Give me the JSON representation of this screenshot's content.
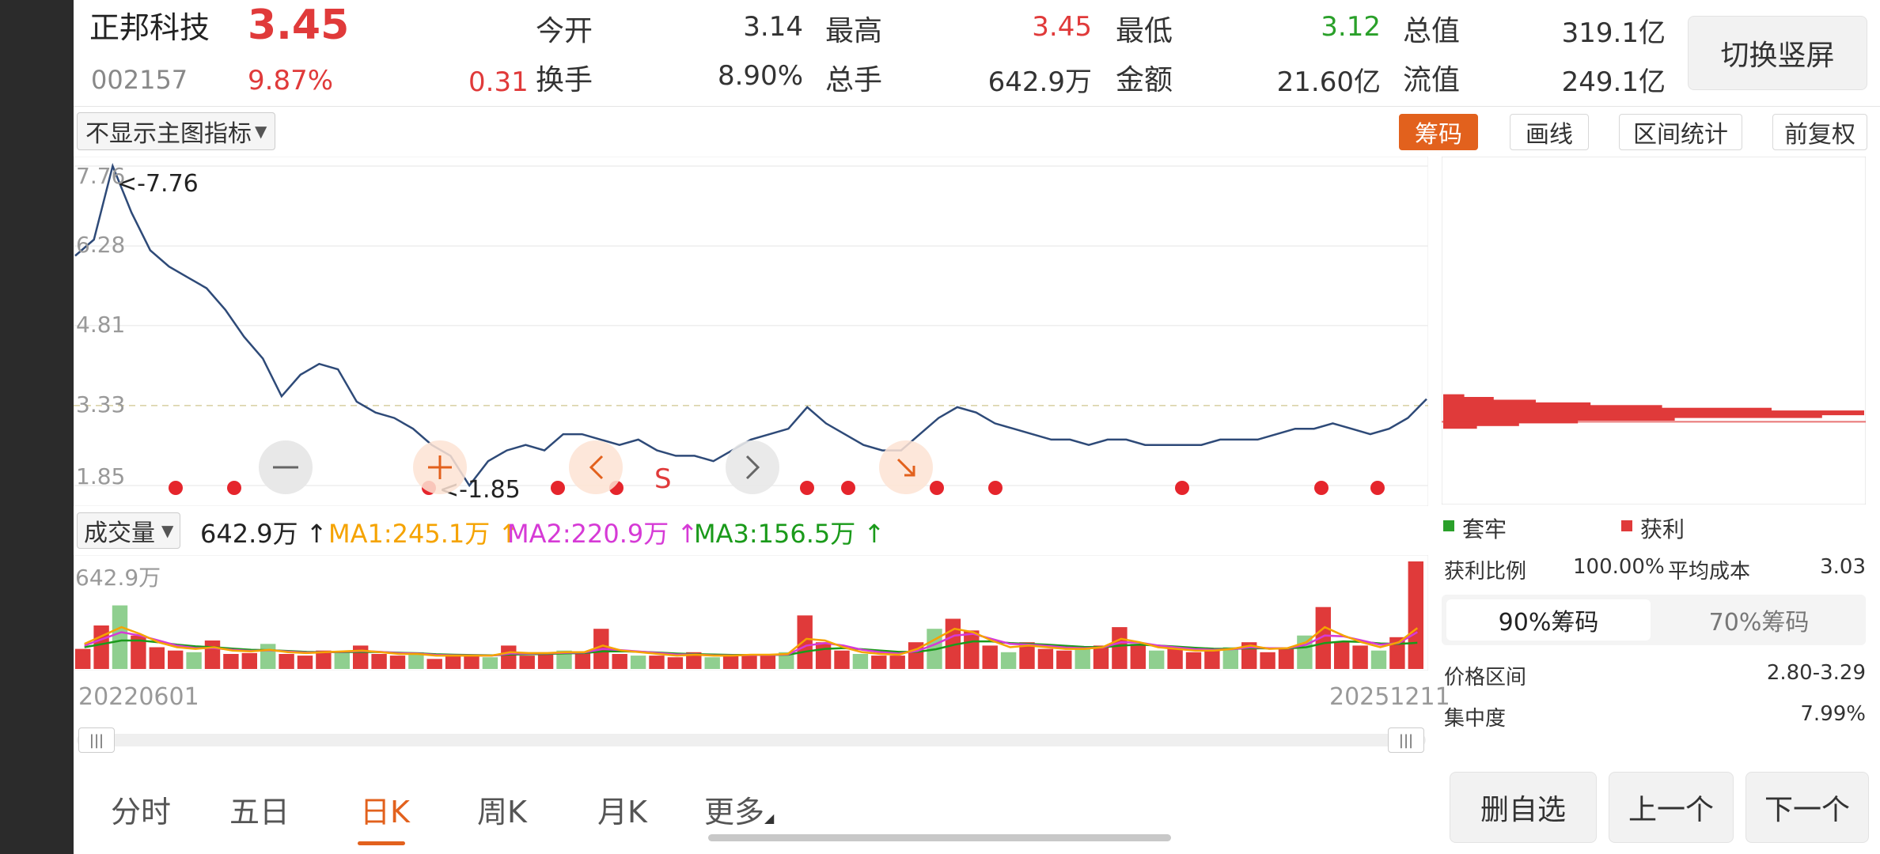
{
  "stock": {
    "name": "正邦科技",
    "code": "002157",
    "price": "3.45",
    "change_pct": "9.87%",
    "change_amt": "0.31"
  },
  "quote": {
    "open_label": "今开",
    "open_value": "3.14",
    "high_label": "最高",
    "high_value": "3.45",
    "low_label": "最低",
    "low_value": "3.12",
    "total_cap_label": "总值",
    "total_cap_value": "319.1亿",
    "turnover_label": "换手",
    "turnover_value": "8.90%",
    "volume_label": "总手",
    "volume_value": "642.9万",
    "amount_label": "金额",
    "amount_value": "21.60亿",
    "float_cap_label": "流值",
    "float_cap_value": "249.1亿"
  },
  "switch_button": "切换竖屏",
  "indicator_select": "不显示主图指标",
  "toolbar": {
    "chips": "筹码",
    "draw": "画线",
    "range_stats": "区间统计",
    "adjust": "前复权"
  },
  "price_axis": [
    "7.76",
    "6.28",
    "4.81",
    "3.33",
    "1.85"
  ],
  "annotations": {
    "high": "<-7.76",
    "low": "<-1.85",
    "s_marker": "S"
  },
  "volume_bar": {
    "select": "成交量",
    "value": "642.9万",
    "ma1": "MA1:245.1万",
    "ma2": "MA2:220.9万",
    "ma3": "MA3:156.5万",
    "axis_max": "642.9万"
  },
  "dates": {
    "start": "20220601",
    "end": "20251211"
  },
  "period_tabs": [
    "分时",
    "五日",
    "日K",
    "周K",
    "月K",
    "更多"
  ],
  "active_tab": 2,
  "chip_panel": {
    "legend_trapped": "套牢",
    "legend_profit": "获利",
    "profit_ratio_label": "获利比例",
    "profit_ratio_value": "100.00%",
    "avg_cost_label": "平均成本",
    "avg_cost_value": "3.03",
    "tab_90": "90%筹码",
    "tab_70": "70%筹码",
    "price_range_label": "价格区间",
    "price_range_value": "2.80-3.29",
    "concentration_label": "集中度",
    "concentration_value": "7.99%"
  },
  "bottom_buttons": {
    "remove": "删自选",
    "prev": "上一个",
    "next": "下一个"
  },
  "colors": {
    "up": "#e03a3a",
    "down": "#2aa02a",
    "accent": "#e2611d",
    "price_line": "#2e4a78",
    "ma1": "#f5a300",
    "ma2": "#d63ad6",
    "ma3": "#1a9a1a"
  },
  "chart_data": [
    {
      "type": "line",
      "title": "",
      "xlabel": "",
      "ylabel": "",
      "x_range": [
        "20220601",
        "20251211"
      ],
      "ylim": [
        1.85,
        7.76
      ],
      "y_ticks": [
        7.76,
        6.28,
        4.81,
        3.33,
        1.85
      ],
      "series": [
        {
          "values": [
            6.1,
            6.4,
            7.76,
            6.9,
            6.2,
            5.9,
            5.7,
            5.5,
            5.1,
            4.6,
            4.2,
            3.5,
            3.9,
            4.1,
            4.0,
            3.4,
            3.2,
            3.1,
            2.9,
            2.6,
            2.4,
            1.85,
            2.3,
            2.5,
            2.6,
            2.5,
            2.8,
            2.8,
            2.7,
            2.6,
            2.7,
            2.5,
            2.4,
            2.4,
            2.3,
            2.5,
            2.7,
            2.8,
            2.9,
            3.3,
            3.0,
            2.8,
            2.6,
            2.5,
            2.5,
            2.8,
            3.1,
            3.3,
            3.2,
            3.0,
            2.9,
            2.8,
            2.7,
            2.7,
            2.6,
            2.7,
            2.7,
            2.6,
            2.6,
            2.6,
            2.6,
            2.7,
            2.7,
            2.7,
            2.8,
            2.9,
            2.9,
            3.0,
            2.9,
            2.8,
            2.9,
            3.1,
            3.45
          ]
        }
      ]
    },
    {
      "type": "bar",
      "title": "",
      "ylim": [
        0,
        642.9
      ],
      "unit": "万",
      "series": [
        {
          "name": "成交量",
          "values": [
            120,
            260,
            380,
            200,
            130,
            110,
            100,
            170,
            90,
            95,
            150,
            90,
            80,
            110,
            100,
            140,
            90,
            80,
            100,
            60,
            90,
            80,
            70,
            140,
            80,
            90,
            110,
            100,
            240,
            90,
            80,
            80,
            70,
            100,
            70,
            80,
            90,
            80,
            100,
            320,
            160,
            110,
            90,
            80,
            80,
            160,
            240,
            300,
            230,
            140,
            100,
            160,
            120,
            110,
            120,
            140,
            250,
            150,
            110,
            120,
            100,
            110,
            130,
            160,
            100,
            130,
            200,
            370,
            160,
            140,
            110,
            190,
            642.9
          ]
        },
        {
          "name": "MA1",
          "values": [
            150,
            200,
            250,
            210,
            160,
            130,
            120,
            130,
            110,
            105,
            115,
            100,
            95,
            100,
            105,
            110,
            100,
            90,
            90,
            80,
            80,
            80,
            80,
            100,
            95,
            95,
            100,
            100,
            140,
            110,
            100,
            90,
            80,
            85,
            80,
            80,
            85,
            85,
            90,
            180,
            170,
            130,
            100,
            90,
            85,
            120,
            180,
            240,
            220,
            170,
            130,
            140,
            130,
            120,
            120,
            130,
            180,
            160,
            130,
            120,
            110,
            110,
            120,
            140,
            120,
            125,
            160,
            250,
            200,
            160,
            130,
            160,
            245.1
          ]
        },
        {
          "name": "MA2",
          "values": [
            140,
            180,
            220,
            200,
            170,
            140,
            125,
            125,
            115,
            108,
            112,
            104,
            98,
            100,
            103,
            108,
            102,
            94,
            92,
            84,
            82,
            81,
            80,
            92,
            92,
            93,
            97,
            99,
            120,
            112,
            104,
            95,
            86,
            86,
            82,
            81,
            83,
            84,
            87,
            140,
            155,
            140,
            115,
            100,
            92,
            108,
            150,
            200,
            210,
            180,
            150,
            145,
            138,
            128,
            124,
            128,
            160,
            158,
            140,
            128,
            118,
            115,
            118,
            130,
            124,
            124,
            145,
            200,
            195,
            170,
            145,
            155,
            220.9
          ]
        },
        {
          "name": "MA3",
          "values": [
            130,
            150,
            170,
            170,
            160,
            145,
            135,
            130,
            122,
            115,
            112,
            108,
            102,
            100,
            100,
            102,
            101,
            97,
            94,
            88,
            85,
            83,
            82,
            86,
            88,
            90,
            93,
            95,
            105,
            106,
            103,
            98,
            92,
            89,
            86,
            84,
            84,
            84,
            85,
            105,
            120,
            125,
            118,
            110,
            102,
            102,
            118,
            145,
            165,
            165,
            155,
            150,
            145,
            138,
            132,
            130,
            140,
            145,
            140,
            134,
            126,
            121,
            120,
            124,
            123,
            123,
            130,
            155,
            165,
            162,
            152,
            150,
            156.5
          ]
        }
      ]
    },
    {
      "type": "bar",
      "orientation": "horizontal",
      "title": "",
      "note": "chip distribution (all profit)",
      "price_axis_range": [
        1.85,
        7.76
      ],
      "values": [
        {
          "price": 3.45,
          "weight": 0.05
        },
        {
          "price": 3.4,
          "weight": 0.12
        },
        {
          "price": 3.35,
          "weight": 0.22
        },
        {
          "price": 3.3,
          "weight": 0.35
        },
        {
          "price": 3.25,
          "weight": 0.52
        },
        {
          "price": 3.2,
          "weight": 0.78
        },
        {
          "price": 3.15,
          "weight": 1.0
        },
        {
          "price": 3.1,
          "weight": 0.9
        },
        {
          "price": 3.05,
          "weight": 0.55
        },
        {
          "price": 3.0,
          "weight": 0.32
        },
        {
          "price": 2.95,
          "weight": 0.18
        },
        {
          "price": 2.9,
          "weight": 0.08
        }
      ]
    }
  ]
}
